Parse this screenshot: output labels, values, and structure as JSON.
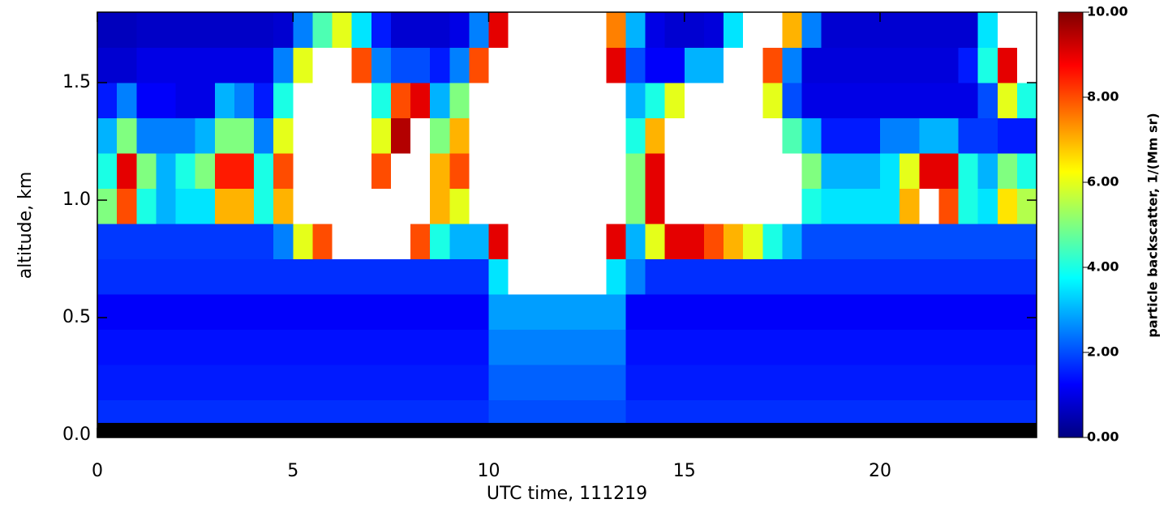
{
  "chart_data": {
    "type": "heatmap",
    "xlabel": "UTC time, 111219",
    "ylabel": "altitude, km",
    "colorbar_label": "particle backscatter, 1/(Mm sr)",
    "colormap": "jet",
    "over_color": "#ffffff",
    "clim": [
      0,
      10
    ],
    "cticks": [
      {
        "value": 0,
        "label": "0.00"
      },
      {
        "value": 2,
        "label": "2.00"
      },
      {
        "value": 4,
        "label": "4.00"
      },
      {
        "value": 6,
        "label": "6.00"
      },
      {
        "value": 8,
        "label": "8.00"
      },
      {
        "value": 10,
        "label": "10.00"
      }
    ],
    "xlim": [
      0,
      24
    ],
    "xticks": [
      0,
      5,
      10,
      15,
      20
    ],
    "ylim": [
      -0.01,
      1.8
    ],
    "yticks": [
      {
        "value": 0,
        "label": "0.0"
      },
      0.5,
      {
        "value": 1,
        "label": "1.0"
      },
      1.5
    ],
    "x_edges": [
      0,
      0.5,
      1,
      1.5,
      2,
      2.5,
      3,
      3.5,
      4,
      4.5,
      5,
      5.5,
      6,
      6.5,
      7,
      7.5,
      8,
      8.5,
      9,
      9.5,
      10,
      10.5,
      11,
      11.5,
      12,
      12.5,
      13,
      13.5,
      14,
      14.5,
      15,
      15.5,
      16,
      16.5,
      17,
      17.5,
      18,
      18.5,
      19,
      19.5,
      20,
      20.5,
      21,
      21.5,
      22,
      22.5,
      23,
      23.5,
      24
    ],
    "y_edges": [
      0,
      0.15,
      0.3,
      0.45,
      0.6,
      0.75,
      0.9,
      1.05,
      1.2,
      1.35,
      1.5,
      1.65,
      1.8
    ],
    "z": [
      [
        1.7,
        1.7,
        1.7,
        1.7,
        1.7,
        1.7,
        1.7,
        1.7,
        1.7,
        1.7,
        1.7,
        1.7,
        1.7,
        1.7,
        1.7,
        1.7,
        1.7,
        1.7,
        1.7,
        1.7,
        2,
        2,
        2,
        2,
        2,
        2,
        2,
        1.7,
        1.7,
        1.7,
        1.7,
        1.7,
        1.7,
        1.7,
        1.7,
        1.7,
        1.7,
        1.7,
        1.7,
        1.7,
        1.7,
        1.7,
        1.7,
        1.7,
        1.7,
        1.7,
        1.7,
        1.7
      ],
      [
        1.5,
        1.5,
        1.5,
        1.5,
        1.5,
        1.5,
        1.5,
        1.5,
        1.5,
        1.5,
        1.5,
        1.5,
        1.5,
        1.5,
        1.5,
        1.5,
        1.5,
        1.5,
        1.5,
        1.5,
        2.2,
        2.2,
        2.2,
        2.2,
        2.2,
        2.2,
        2.2,
        1.5,
        1.5,
        1.5,
        1.5,
        1.5,
        1.5,
        1.5,
        1.5,
        1.5,
        1.5,
        1.5,
        1.5,
        1.5,
        1.5,
        1.5,
        1.5,
        1.5,
        1.5,
        1.5,
        1.5,
        1.5
      ],
      [
        1.4,
        1.4,
        1.4,
        1.4,
        1.4,
        1.4,
        1.4,
        1.4,
        1.4,
        1.4,
        1.4,
        1.4,
        1.4,
        1.4,
        1.4,
        1.4,
        1.4,
        1.4,
        1.4,
        1.4,
        2.5,
        2.5,
        2.5,
        2.5,
        2.5,
        2.5,
        2.5,
        1.4,
        1.4,
        1.4,
        1.4,
        1.4,
        1.4,
        1.4,
        1.4,
        1.4,
        1.4,
        1.4,
        1.4,
        1.4,
        1.4,
        1.4,
        1.4,
        1.4,
        1.4,
        1.4,
        1.4,
        1.4
      ],
      [
        1.2,
        1.2,
        1.2,
        1.2,
        1.2,
        1.2,
        1.2,
        1.2,
        1.2,
        1.2,
        1.2,
        1.2,
        1.2,
        1.2,
        1.2,
        1.2,
        1.2,
        1.2,
        1.2,
        1.2,
        2.8,
        2.8,
        2.8,
        2.8,
        2.8,
        2.8,
        2.8,
        1.2,
        1.2,
        1.2,
        1.2,
        1.2,
        1.2,
        1.2,
        1.2,
        1.2,
        1.2,
        1.2,
        1.2,
        1.2,
        1.2,
        1.2,
        1.2,
        1.2,
        1.2,
        1.2,
        1.2,
        1.2
      ],
      [
        1.7,
        1.7,
        1.7,
        1.7,
        1.7,
        1.7,
        1.7,
        1.7,
        1.7,
        1.7,
        1.7,
        1.7,
        1.7,
        1.7,
        1.7,
        1.7,
        1.7,
        1.7,
        1.7,
        1.7,
        3.5,
        12,
        12,
        12,
        12,
        12,
        3.5,
        2.5,
        1.7,
        1.7,
        1.7,
        1.7,
        1.7,
        1.7,
        1.7,
        1.7,
        1.7,
        1.7,
        1.7,
        1.7,
        1.7,
        1.7,
        1.7,
        1.7,
        1.7,
        1.7,
        1.7,
        1.7
      ],
      [
        1.8,
        1.8,
        1.8,
        1.8,
        1.8,
        1.8,
        1.8,
        1.8,
        1.8,
        2.5,
        6,
        8,
        12,
        12,
        12,
        12,
        8,
        4,
        3,
        3,
        9,
        12,
        12,
        12,
        12,
        12,
        9,
        3,
        6,
        9,
        9,
        8,
        7,
        6,
        4,
        3,
        2,
        2,
        2,
        2,
        2,
        2,
        2,
        2,
        2,
        2,
        2,
        2
      ],
      [
        5,
        8,
        4,
        3,
        3.5,
        3.5,
        7,
        7,
        4,
        7,
        12,
        12,
        12,
        12,
        12,
        12,
        12,
        7,
        6,
        12,
        12,
        12,
        12,
        12,
        12,
        12,
        12,
        5,
        9,
        12,
        12,
        12,
        12,
        12,
        12,
        12,
        4,
        3.5,
        3.5,
        3.5,
        3.5,
        7,
        12,
        8,
        4,
        3.5,
        6.5,
        5.5
      ],
      [
        4,
        9,
        5,
        3,
        4,
        5,
        8.5,
        8.5,
        4,
        8,
        12,
        12,
        12,
        12,
        8,
        12,
        12,
        7,
        8,
        12,
        12,
        12,
        12,
        12,
        12,
        12,
        12,
        5,
        9,
        12,
        12,
        12,
        12,
        12,
        12,
        12,
        5,
        3,
        3,
        3,
        3.5,
        6,
        9,
        9,
        4,
        3,
        5,
        4
      ],
      [
        3,
        5,
        2.5,
        2.5,
        2.5,
        3,
        5,
        5,
        2.5,
        6,
        12,
        12,
        12,
        12,
        6,
        9.5,
        12,
        5,
        7,
        12,
        12,
        12,
        12,
        12,
        12,
        12,
        12,
        4,
        7,
        12,
        12,
        12,
        12,
        12,
        12,
        4.5,
        3,
        1.5,
        1.5,
        1.5,
        2.5,
        2.5,
        3,
        3,
        1.8,
        1.8,
        1.5,
        1.5
      ],
      [
        1.5,
        2.5,
        1.2,
        1.2,
        1,
        1,
        3,
        2.5,
        1.5,
        4,
        12,
        12,
        12,
        12,
        4,
        8,
        9,
        3,
        5,
        12,
        12,
        12,
        12,
        12,
        12,
        12,
        12,
        3,
        4,
        6,
        12,
        12,
        12,
        12,
        6,
        2,
        1,
        1,
        1,
        1,
        1,
        1,
        1,
        1,
        1,
        2,
        6,
        4
      ],
      [
        0.8,
        0.8,
        1,
        1,
        1,
        1,
        1,
        1,
        1,
        2.5,
        6,
        12,
        12,
        8,
        2.5,
        2,
        2,
        1.5,
        2.5,
        8,
        12,
        12,
        12,
        12,
        12,
        12,
        9,
        2,
        1.2,
        1.2,
        3,
        3,
        12,
        12,
        8,
        2.5,
        0.9,
        0.9,
        0.9,
        0.9,
        0.9,
        0.9,
        0.9,
        0.9,
        1.5,
        4,
        9,
        12
      ],
      [
        0.6,
        0.6,
        0.7,
        0.7,
        0.7,
        0.7,
        0.7,
        0.7,
        0.7,
        0.8,
        2.5,
        4.5,
        6,
        3.5,
        1.5,
        0.8,
        0.8,
        0.8,
        1,
        2.5,
        9,
        12,
        12,
        12,
        12,
        12,
        7.5,
        3,
        1,
        0.8,
        0.8,
        0.9,
        3.5,
        12,
        12,
        7,
        2.5,
        0.8,
        0.8,
        0.8,
        0.8,
        0.8,
        0.8,
        0.8,
        0.8,
        3.5,
        12,
        12
      ]
    ]
  }
}
